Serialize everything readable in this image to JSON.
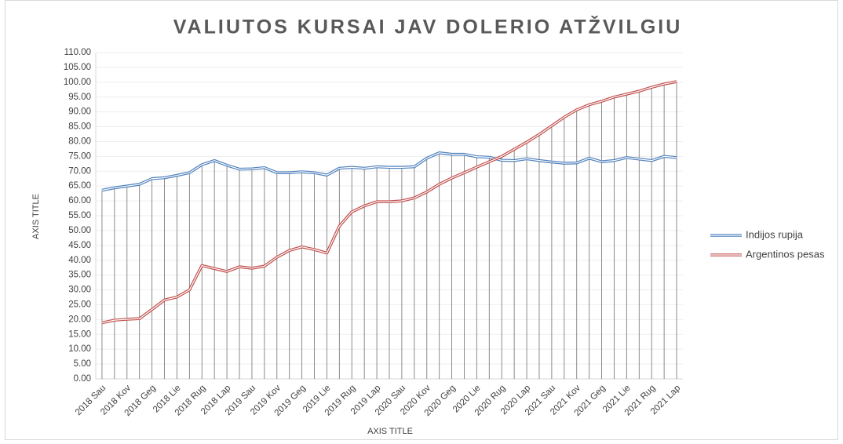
{
  "chart_data": {
    "type": "line",
    "title": "VALIUTOS KURSAI JAV DOLERIO ATŽVILGIU",
    "x_label": "AXIS TITLE",
    "y_label": "AXIS TITLE",
    "categories": [
      "2018 Sau",
      null,
      "2018 Kov",
      null,
      "2018 Geg",
      null,
      "2018 Lie",
      null,
      "2018 Rug",
      null,
      "2018 Lap",
      null,
      "2019 Sau",
      null,
      "2019 Kov",
      null,
      "2019 Geg",
      null,
      "2019 Lie",
      null,
      "2019 Rug",
      null,
      "2019 Lap",
      null,
      "2020 Sau",
      null,
      "2020 Kov",
      null,
      "2020 Geg",
      null,
      "2020 Lie",
      null,
      "2020 Rug",
      null,
      "2020 Lap",
      null,
      "2021 Sau",
      null,
      "2021 Kov",
      null,
      "2021 Geg",
      null,
      "2021 Lie",
      null,
      "2021 Rug",
      null,
      "2021 Lap"
    ],
    "series": [
      {
        "name": "Indijos rupija",
        "color": "#4f81bd",
        "values": [
          63.6,
          64.4,
          65.0,
          65.6,
          67.5,
          67.8,
          68.6,
          69.5,
          72.2,
          73.6,
          72.0,
          70.7,
          70.8,
          71.2,
          69.5,
          69.5,
          69.8,
          69.5,
          68.7,
          71.0,
          71.3,
          71.0,
          71.5,
          71.3,
          71.3,
          71.5,
          74.4,
          76.2,
          75.7,
          75.7,
          74.9,
          74.7,
          73.7,
          73.6,
          74.2,
          73.6,
          73.1,
          72.7,
          72.8,
          74.4,
          73.2,
          73.6,
          74.6,
          74.1,
          73.6,
          75.0,
          74.6
        ]
      },
      {
        "name": "Argentinos pesas",
        "color": "#c0504d",
        "values": [
          18.9,
          19.8,
          20.1,
          20.3,
          23.4,
          26.6,
          27.6,
          30.0,
          38.2,
          37.2,
          36.2,
          37.8,
          37.3,
          38.0,
          41.0,
          43.3,
          44.5,
          43.6,
          42.4,
          51.5,
          56.3,
          58.3,
          59.7,
          59.7,
          60.0,
          61.0,
          63.0,
          65.6,
          67.7,
          69.5,
          71.4,
          73.2,
          75.0,
          77.4,
          79.8,
          82.4,
          85.3,
          88.2,
          90.7,
          92.4,
          93.6,
          95.0,
          96.0,
          97.0,
          98.3,
          99.4,
          100.2
        ]
      }
    ],
    "ylim": [
      0,
      110
    ],
    "yticks": [
      {
        "value": 0,
        "label": "0.00"
      },
      {
        "value": 5,
        "label": "5.00"
      },
      {
        "value": 10,
        "label": "10.00"
      },
      {
        "value": 15,
        "label": "15.00"
      },
      {
        "value": 20,
        "label": "20.00"
      },
      {
        "value": 25,
        "label": "25.00"
      },
      {
        "value": 30,
        "label": "30.00"
      },
      {
        "value": 35,
        "label": "35.00"
      },
      {
        "value": 40,
        "label": "40.00"
      },
      {
        "value": 45,
        "label": "45.00"
      },
      {
        "value": 50,
        "label": "50.00"
      },
      {
        "value": 55,
        "label": "55.00"
      },
      {
        "value": 60,
        "label": "60.00"
      },
      {
        "value": 65,
        "label": "65.00"
      },
      {
        "value": 70,
        "label": "70.00"
      },
      {
        "value": 75,
        "label": "75.00"
      },
      {
        "value": 80,
        "label": "80.00"
      },
      {
        "value": 85,
        "label": "85.00"
      },
      {
        "value": 90,
        "label": "90.00"
      },
      {
        "value": 95,
        "label": "95.00"
      },
      {
        "value": 100,
        "label": "100.00"
      },
      {
        "value": 105,
        "label": "105.00"
      },
      {
        "value": 110,
        "label": "110.00"
      }
    ],
    "grid": true,
    "drop_lines": true,
    "legend": "right"
  }
}
